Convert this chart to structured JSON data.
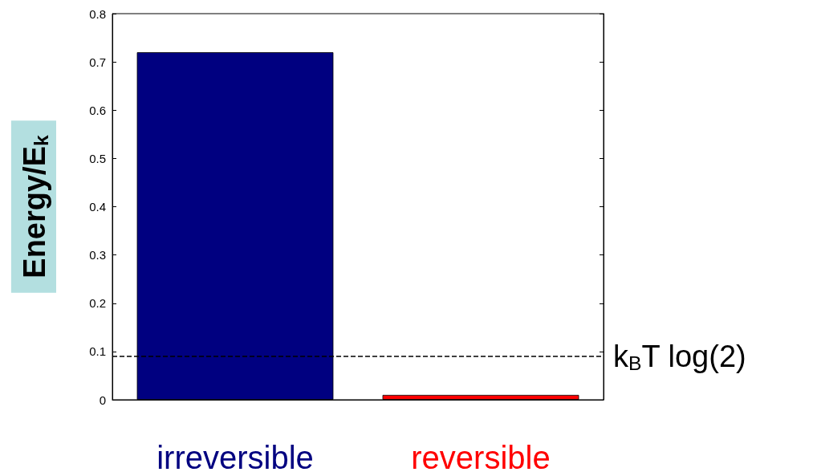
{
  "chart_data": {
    "type": "bar",
    "ylabel": "Energy/E$_{k}$",
    "categories": [
      "irreversible",
      "reversible"
    ],
    "values": [
      0.72,
      0.01
    ],
    "colors": [
      "#000080",
      "#ff0000"
    ],
    "ylim": [
      0,
      0.8
    ],
    "yticks": [
      0,
      0.1,
      0.2,
      0.3,
      0.4,
      0.5,
      0.6,
      0.7,
      0.8
    ],
    "grid": false,
    "ref_lines": [
      {
        "axis": "y",
        "value": 0.09,
        "label": "k$_{B}$T log(2)",
        "color": "#000000",
        "line_style": "dashed"
      }
    ]
  }
}
